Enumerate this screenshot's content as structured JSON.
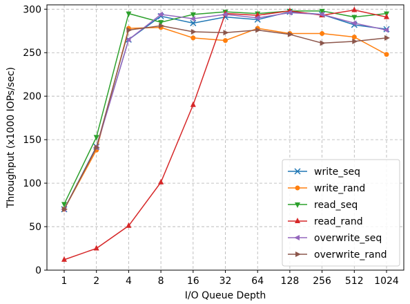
{
  "chart_data": {
    "type": "line",
    "categories": [
      "1",
      "2",
      "4",
      "8",
      "16",
      "32",
      "64",
      "128",
      "256",
      "512",
      "1024"
    ],
    "xlabel": "I/O Queue Depth",
    "ylabel": "Throughput (x1000 IOPs/sec)",
    "ylim": [
      0,
      305
    ],
    "yticks": [
      0,
      50,
      100,
      150,
      200,
      250,
      300
    ],
    "grid": true,
    "legend_position": "bottom-right",
    "series": [
      {
        "name": "write_seq",
        "color": "#1f77b4",
        "marker": "x",
        "values": [
          70,
          142,
          265,
          292,
          284,
          291,
          288,
          297,
          294,
          282,
          277
        ]
      },
      {
        "name": "write_rand",
        "color": "#ff7f0e",
        "marker": "circle",
        "values": [
          70,
          138,
          278,
          279,
          267,
          264,
          278,
          272,
          272,
          268,
          248
        ]
      },
      {
        "name": "read_seq",
        "color": "#2ca02c",
        "marker": "triangle-down",
        "values": [
          76,
          153,
          295,
          285,
          294,
          297,
          295,
          298,
          298,
          291,
          295
        ]
      },
      {
        "name": "read_rand",
        "color": "#d62728",
        "marker": "triangle-up",
        "values": [
          12,
          25,
          51,
          101,
          190,
          295,
          293,
          298,
          293,
          299,
          291
        ]
      },
      {
        "name": "overwrite_seq",
        "color": "#9467bd",
        "marker": "triangle-left",
        "values": [
          70,
          141,
          265,
          294,
          289,
          294,
          290,
          296,
          294,
          284,
          276
        ]
      },
      {
        "name": "overwrite_rand",
        "color": "#8c564b",
        "marker": "triangle-right",
        "values": [
          70,
          141,
          276,
          281,
          274,
          273,
          276,
          271,
          261,
          263,
          267
        ]
      }
    ]
  }
}
